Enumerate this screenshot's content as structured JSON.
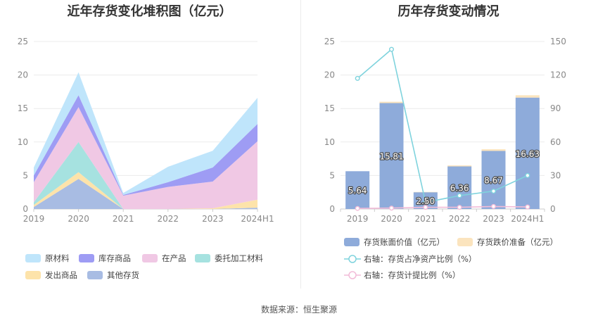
{
  "left_title": "近年存货变化堆积图（亿元）",
  "right_title": "历年存货变动情况",
  "source": "数据来源：恒生聚源",
  "colors": {
    "原材料": "#bfe5fb",
    "库存商品": "#9e9cf4",
    "在产品": "#f0c8e4",
    "委托加工材料": "#a6e2e0",
    "发出商品": "#fde3aa",
    "其他存货": "#a8bce3",
    "bar_value": "#8eabda",
    "bar_reserve": "#fbe4be",
    "line_ratio": "#7fd3dd",
    "line_provision": "#f2bcd8"
  },
  "chart_data": [
    {
      "type": "area",
      "stacked": true,
      "title": "近年存货变化堆积图（亿元）",
      "categories": [
        "2019",
        "2020",
        "2021",
        "2022",
        "2023",
        "2024H1"
      ],
      "ylim": [
        0,
        25
      ],
      "yticks": [
        0,
        5,
        10,
        15,
        20,
        25
      ],
      "grid": true,
      "legend_position": "bottom",
      "series": [
        {
          "name": "其他存货",
          "values": [
            0.3,
            4.5,
            0.0,
            0.0,
            0.0,
            0.2
          ]
        },
        {
          "name": "发出商品",
          "values": [
            0.3,
            1.0,
            0.0,
            0.0,
            0.1,
            1.2
          ]
        },
        {
          "name": "委托加工材料",
          "values": [
            0.4,
            4.5,
            0.0,
            0.0,
            0.0,
            0.0
          ]
        },
        {
          "name": "在产品",
          "values": [
            3.0,
            5.2,
            2.0,
            3.3,
            4.0,
            8.7
          ]
        },
        {
          "name": "库存商品",
          "values": [
            1.0,
            1.8,
            0.1,
            0.7,
            2.1,
            2.6
          ]
        },
        {
          "name": "原材料",
          "values": [
            1.2,
            3.4,
            0.3,
            2.3,
            2.5,
            3.9
          ]
        }
      ],
      "legend": [
        "原材料",
        "库存商品",
        "在产品",
        "委托加工材料",
        "发出商品",
        "其他存货"
      ]
    },
    {
      "type": "bar",
      "stacked": true,
      "title": "历年存货变动情况",
      "categories": [
        "2019",
        "2020",
        "2021",
        "2022",
        "2023",
        "2024H1"
      ],
      "ylim": [
        0,
        25
      ],
      "yticks": [
        0,
        5,
        10,
        15,
        20,
        25
      ],
      "y2lim": [
        0,
        150
      ],
      "y2ticks": [
        0,
        30,
        60,
        90,
        120,
        150
      ],
      "grid": true,
      "legend_position": "bottom",
      "series": [
        {
          "name": "存货账面价值（亿元）",
          "axis": "left",
          "values": [
            5.64,
            15.81,
            2.5,
            6.36,
            8.67,
            16.63
          ],
          "labels": [
            "5.64",
            "15.81",
            "2.50",
            "6.36",
            "8.67",
            "16.63"
          ]
        },
        {
          "name": "存货跌价准备（亿元）",
          "axis": "left",
          "values": [
            0.0,
            0.2,
            0.05,
            0.15,
            0.25,
            0.35
          ]
        }
      ],
      "lines": [
        {
          "name": "右轴：存货占净资产比例（%）",
          "axis": "right",
          "values": [
            117,
            143,
            6,
            12,
            16,
            30
          ]
        },
        {
          "name": "右轴：存货计提比例（%）",
          "axis": "right",
          "values": [
            0.5,
            0.8,
            1.5,
            1.5,
            2.3,
            1.8
          ]
        }
      ]
    }
  ]
}
